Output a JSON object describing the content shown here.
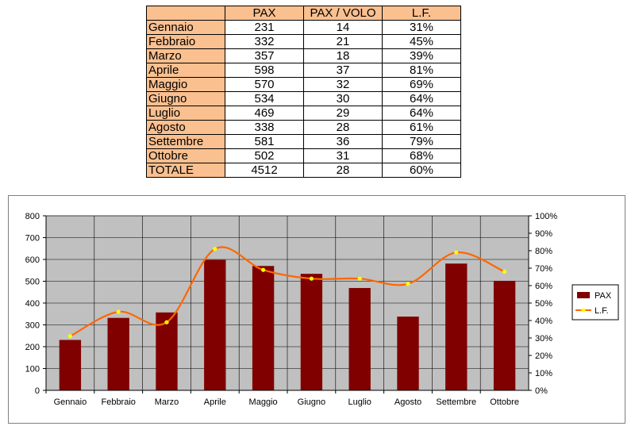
{
  "table": {
    "headers": [
      "",
      "PAX",
      "PAX / VOLO",
      "L.F."
    ],
    "rows": [
      [
        "Gennaio",
        "231",
        "14",
        "31%"
      ],
      [
        "Febbraio",
        "332",
        "21",
        "45%"
      ],
      [
        "Marzo",
        "357",
        "18",
        "39%"
      ],
      [
        "Aprile",
        "598",
        "37",
        "81%"
      ],
      [
        "Maggio",
        "570",
        "32",
        "69%"
      ],
      [
        "Giugno",
        "534",
        "30",
        "64%"
      ],
      [
        "Luglio",
        "469",
        "29",
        "64%"
      ],
      [
        "Agosto",
        "338",
        "28",
        "61%"
      ],
      [
        "Settembre",
        "581",
        "36",
        "79%"
      ],
      [
        "Ottobre",
        "502",
        "31",
        "68%"
      ],
      [
        "TOTALE",
        "4512",
        "28",
        "60%"
      ]
    ]
  },
  "chart_data": {
    "type": "bar",
    "categories": [
      "Gennaio",
      "Febbraio",
      "Marzo",
      "Aprile",
      "Maggio",
      "Giugno",
      "Luglio",
      "Agosto",
      "Settembre",
      "Ottobre"
    ],
    "series": [
      {
        "name": "PAX",
        "type": "bar",
        "axis": "left",
        "values": [
          231,
          332,
          357,
          598,
          570,
          534,
          469,
          338,
          581,
          502
        ],
        "color": "#800000"
      },
      {
        "name": "L.F.",
        "type": "line",
        "axis": "right",
        "values": [
          31,
          45,
          39,
          81,
          69,
          64,
          64,
          61,
          79,
          68
        ],
        "color": "#ff6600",
        "marker_color": "#ffff00"
      }
    ],
    "ylim": [
      0,
      800
    ],
    "y_ticks": [
      "0",
      "100",
      "200",
      "300",
      "400",
      "500",
      "600",
      "700",
      "800"
    ],
    "y2lim": [
      0,
      100
    ],
    "y2_ticks": [
      "0%",
      "10%",
      "20%",
      "30%",
      "40%",
      "50%",
      "60%",
      "70%",
      "80%",
      "90%",
      "100%"
    ],
    "legend": {
      "position": "right",
      "entries": [
        "PAX",
        "L.F."
      ]
    },
    "grid": true,
    "plot_background": "#c0c0c0"
  }
}
